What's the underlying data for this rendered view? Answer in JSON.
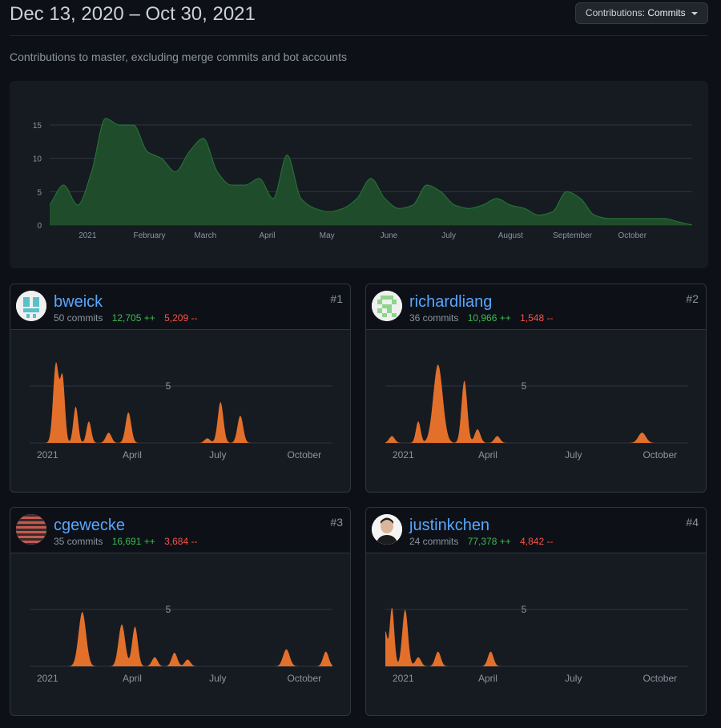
{
  "header": {
    "date_range": "Dec 13, 2020 – Oct 30, 2021",
    "contributions_label": "Contributions:",
    "contributions_value": "Commits"
  },
  "subtitle": "Contributions to master, excluding merge commits and bot accounts",
  "colors": {
    "background": "#0d1117",
    "panel": "#161b22",
    "main_fill": "#1f4d2b",
    "main_stroke": "#2ea043",
    "user_fill": "#e3702a",
    "link": "#58a6ff",
    "additions": "#3fb950",
    "deletions": "#f85149"
  },
  "chart_data": [
    {
      "type": "area",
      "y_ticks": [
        "0",
        "5",
        "10",
        "15"
      ],
      "ylim": [
        0,
        18
      ],
      "x_tick_labels": [
        "2021",
        "February",
        "March",
        "April",
        "May",
        "June",
        "July",
        "August",
        "September",
        "October"
      ],
      "x": [
        "2020-12-13",
        "2020-12-20",
        "2020-12-27",
        "2021-01-03",
        "2021-01-10",
        "2021-01-17",
        "2021-01-24",
        "2021-01-31",
        "2021-02-07",
        "2021-02-14",
        "2021-02-21",
        "2021-02-28",
        "2021-03-07",
        "2021-03-14",
        "2021-03-21",
        "2021-03-28",
        "2021-04-04",
        "2021-04-11",
        "2021-04-18",
        "2021-04-25",
        "2021-05-02",
        "2021-05-09",
        "2021-05-16",
        "2021-05-23",
        "2021-05-30",
        "2021-06-06",
        "2021-06-13",
        "2021-06-20",
        "2021-06-27",
        "2021-07-04",
        "2021-07-11",
        "2021-07-18",
        "2021-07-25",
        "2021-08-01",
        "2021-08-08",
        "2021-08-15",
        "2021-08-22",
        "2021-08-29",
        "2021-09-05",
        "2021-09-12",
        "2021-09-19",
        "2021-09-26",
        "2021-10-03",
        "2021-10-10",
        "2021-10-17",
        "2021-10-24",
        "2021-10-31"
      ],
      "values": [
        3,
        6,
        3,
        8,
        16,
        15,
        15,
        11,
        10,
        8,
        11,
        13,
        8,
        6,
        6,
        7,
        4,
        10.5,
        4,
        2.5,
        2,
        2.5,
        4,
        7,
        4,
        2.5,
        3,
        6,
        5,
        3,
        2.5,
        3,
        4,
        3,
        2.5,
        1.5,
        2,
        5,
        4,
        1.5,
        1,
        1,
        1,
        1,
        1,
        0.5,
        0
      ],
      "grid": true
    }
  ],
  "contributors": [
    {
      "rank": "#1",
      "username": "bweick",
      "commits": "50 commits",
      "additions": "12,705 ++",
      "deletions": "5,209 --",
      "chart": {
        "type": "area",
        "y_tick": "5",
        "x_tick_labels": [
          "2021",
          "April",
          "July",
          "October"
        ],
        "peaks": [
          {
            "date": "2021-01-10",
            "value": 7,
            "sigma": 3
          },
          {
            "date": "2021-01-17",
            "value": 5.6,
            "sigma": 2.5
          },
          {
            "date": "2021-01-31",
            "value": 3.2,
            "sigma": 2.5
          },
          {
            "date": "2021-02-14",
            "value": 1.9,
            "sigma": 2.5
          },
          {
            "date": "2021-03-07",
            "value": 0.9,
            "sigma": 3
          },
          {
            "date": "2021-03-28",
            "value": 2.7,
            "sigma": 3
          },
          {
            "date": "2021-06-20",
            "value": 0.4,
            "sigma": 3
          },
          {
            "date": "2021-07-04",
            "value": 3.6,
            "sigma": 3
          },
          {
            "date": "2021-07-25",
            "value": 2.4,
            "sigma": 3
          }
        ]
      }
    },
    {
      "rank": "#2",
      "username": "richardliang",
      "commits": "36 commits",
      "additions": "10,966 ++",
      "deletions": "1,548 --",
      "chart": {
        "type": "area",
        "y_tick": "5",
        "x_tick_labels": [
          "2021",
          "April",
          "July",
          "October"
        ],
        "peaks": [
          {
            "date": "2020-12-20",
            "value": 0.6,
            "sigma": 3
          },
          {
            "date": "2021-01-17",
            "value": 1.9,
            "sigma": 2.5
          },
          {
            "date": "2021-02-07",
            "value": 6.9,
            "sigma": 5
          },
          {
            "date": "2021-03-07",
            "value": 5.5,
            "sigma": 3
          },
          {
            "date": "2021-03-21",
            "value": 1.2,
            "sigma": 3
          },
          {
            "date": "2021-04-11",
            "value": 0.6,
            "sigma": 3
          },
          {
            "date": "2021-09-12",
            "value": 0.9,
            "sigma": 4
          }
        ]
      }
    },
    {
      "rank": "#3",
      "username": "cgewecke",
      "commits": "35 commits",
      "additions": "16,691 ++",
      "deletions": "3,684 --",
      "chart": {
        "type": "area",
        "y_tick": "5",
        "x_tick_labels": [
          "2021",
          "April",
          "July",
          "October"
        ],
        "peaks": [
          {
            "date": "2021-02-07",
            "value": 4.8,
            "sigma": 4
          },
          {
            "date": "2021-03-21",
            "value": 3.7,
            "sigma": 3.5
          },
          {
            "date": "2021-04-04",
            "value": 3.5,
            "sigma": 3
          },
          {
            "date": "2021-04-25",
            "value": 0.8,
            "sigma": 3
          },
          {
            "date": "2021-05-16",
            "value": 1.2,
            "sigma": 3
          },
          {
            "date": "2021-05-30",
            "value": 0.6,
            "sigma": 3
          },
          {
            "date": "2021-09-12",
            "value": 1.5,
            "sigma": 3.5
          },
          {
            "date": "2021-10-24",
            "value": 1.3,
            "sigma": 3
          }
        ]
      }
    },
    {
      "rank": "#4",
      "username": "justinkchen",
      "commits": "24 commits",
      "additions": "77,378 ++",
      "deletions": "4,842 --",
      "chart": {
        "type": "area",
        "y_tick": "5",
        "x_tick_labels": [
          "2021",
          "April",
          "July",
          "October"
        ],
        "peaks": [
          {
            "date": "2020-12-13",
            "value": 3,
            "sigma": 2
          },
          {
            "date": "2020-12-20",
            "value": 5.2,
            "sigma": 2.5
          },
          {
            "date": "2021-01-03",
            "value": 5,
            "sigma": 3
          },
          {
            "date": "2021-01-17",
            "value": 0.8,
            "sigma": 3
          },
          {
            "date": "2021-02-07",
            "value": 1.3,
            "sigma": 3
          },
          {
            "date": "2021-04-04",
            "value": 1.3,
            "sigma": 3
          }
        ]
      }
    }
  ]
}
